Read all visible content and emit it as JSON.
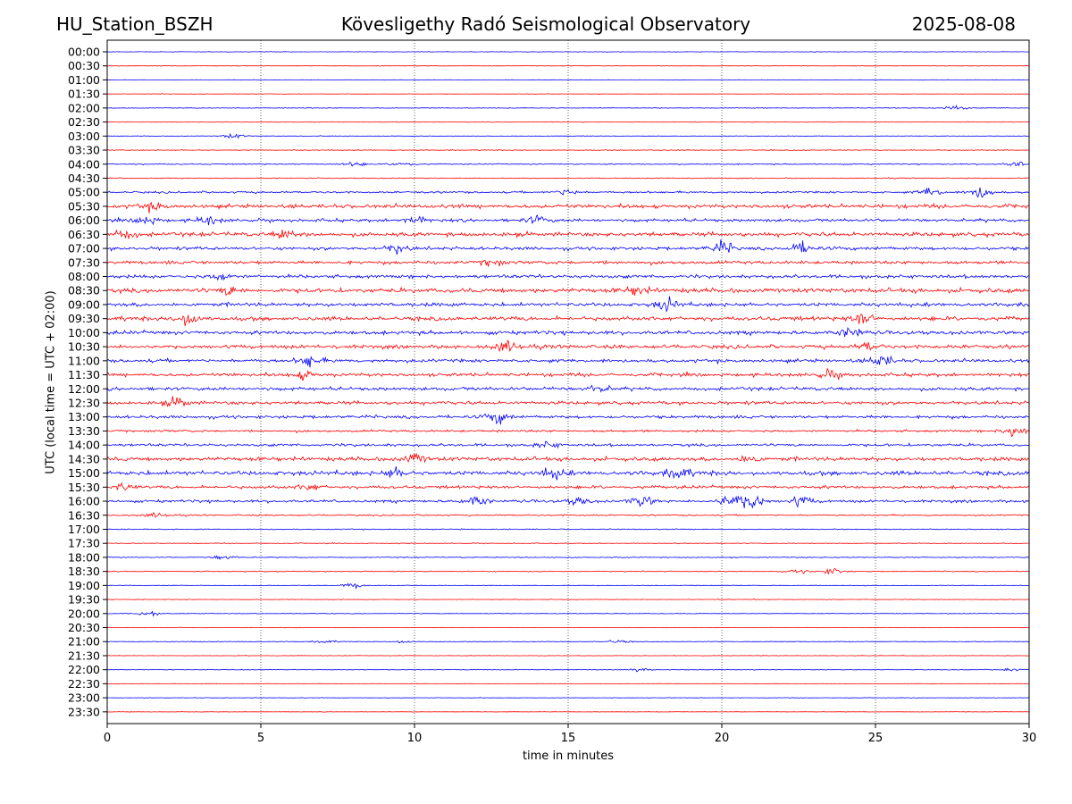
{
  "header": {
    "station": "HU_Station_BSZH",
    "observatory": "Kövesligethy Radó Seismological Observatory",
    "date": "2025-08-08"
  },
  "chart_data": {
    "type": "line",
    "title": "Kövesligethy Radó Seismological Observatory",
    "xlabel": "time in minutes",
    "ylabel": "UTC (local time = UTC + 02:00)",
    "xlim": [
      0,
      30
    ],
    "x_ticks": [
      "0",
      "5",
      "10",
      "15",
      "20",
      "25",
      "30"
    ],
    "grid": "vertical dotted at 5-minute intervals",
    "trace_colors": [
      "#0000ff",
      "#ff0000"
    ],
    "rows": [
      {
        "label": "00:00",
        "noise": 0.3
      },
      {
        "label": "00:30",
        "noise": 0.3
      },
      {
        "label": "01:00",
        "noise": 0.3
      },
      {
        "label": "01:30",
        "noise": 0.3
      },
      {
        "label": "02:00",
        "noise": 0.4
      },
      {
        "label": "02:30",
        "noise": 0.4
      },
      {
        "label": "03:00",
        "noise": 0.4
      },
      {
        "label": "03:30",
        "noise": 0.5
      },
      {
        "label": "04:00",
        "noise": 0.7
      },
      {
        "label": "04:30",
        "noise": 0.6
      },
      {
        "label": "05:00",
        "noise": 1.2
      },
      {
        "label": "05:30",
        "noise": 2.3
      },
      {
        "label": "06:00",
        "noise": 1.8
      },
      {
        "label": "06:30",
        "noise": 2.4
      },
      {
        "label": "07:00",
        "noise": 2.0
      },
      {
        "label": "07:30",
        "noise": 2.0
      },
      {
        "label": "08:00",
        "noise": 2.0
      },
      {
        "label": "08:30",
        "noise": 2.6
      },
      {
        "label": "09:00",
        "noise": 2.2
      },
      {
        "label": "09:30",
        "noise": 2.4
      },
      {
        "label": "10:00",
        "noise": 2.2
      },
      {
        "label": "10:30",
        "noise": 2.2
      },
      {
        "label": "11:00",
        "noise": 2.0
      },
      {
        "label": "11:30",
        "noise": 2.0
      },
      {
        "label": "12:00",
        "noise": 2.0
      },
      {
        "label": "12:30",
        "noise": 2.0
      },
      {
        "label": "13:00",
        "noise": 1.8
      },
      {
        "label": "13:30",
        "noise": 1.4
      },
      {
        "label": "14:00",
        "noise": 1.6
      },
      {
        "label": "14:30",
        "noise": 2.3
      },
      {
        "label": "15:00",
        "noise": 2.6
      },
      {
        "label": "15:30",
        "noise": 1.8
      },
      {
        "label": "16:00",
        "noise": 1.6
      },
      {
        "label": "16:30",
        "noise": 0.9
      },
      {
        "label": "17:00",
        "noise": 0.6
      },
      {
        "label": "17:30",
        "noise": 0.5
      },
      {
        "label": "18:00",
        "noise": 0.6
      },
      {
        "label": "18:30",
        "noise": 0.6
      },
      {
        "label": "19:00",
        "noise": 0.4
      },
      {
        "label": "19:30",
        "noise": 0.4
      },
      {
        "label": "20:00",
        "noise": 0.4
      },
      {
        "label": "20:30",
        "noise": 0.3
      },
      {
        "label": "21:00",
        "noise": 0.4
      },
      {
        "label": "21:30",
        "noise": 0.3
      },
      {
        "label": "22:00",
        "noise": 0.4
      },
      {
        "label": "22:30",
        "noise": 0.3
      },
      {
        "label": "23:00",
        "noise": 0.3
      },
      {
        "label": "23:30",
        "noise": 0.3
      }
    ],
    "bursts": [
      {
        "row": "02:00",
        "t": 27.6,
        "amp": 3
      },
      {
        "row": "03:00",
        "t": 4.1,
        "amp": 3
      },
      {
        "row": "04:00",
        "t": 8.0,
        "amp": 3
      },
      {
        "row": "04:00",
        "t": 9.6,
        "amp": 3
      },
      {
        "row": "04:00",
        "t": 29.6,
        "amp": 3
      },
      {
        "row": "05:00",
        "t": 15.0,
        "amp": 4
      },
      {
        "row": "05:00",
        "t": 26.8,
        "amp": 6
      },
      {
        "row": "05:00",
        "t": 28.4,
        "amp": 8
      },
      {
        "row": "05:30",
        "t": 1.5,
        "amp": 4
      },
      {
        "row": "06:00",
        "t": 1.3,
        "amp": 5
      },
      {
        "row": "06:00",
        "t": 3.3,
        "amp": 5
      },
      {
        "row": "06:00",
        "t": 10.0,
        "amp": 5
      },
      {
        "row": "06:00",
        "t": 14.0,
        "amp": 5
      },
      {
        "row": "06:30",
        "t": 0.6,
        "amp": 5
      },
      {
        "row": "06:30",
        "t": 5.8,
        "amp": 5
      },
      {
        "row": "07:00",
        "t": 9.4,
        "amp": 5
      },
      {
        "row": "07:00",
        "t": 20.0,
        "amp": 8
      },
      {
        "row": "07:00",
        "t": 22.6,
        "amp": 6
      },
      {
        "row": "07:30",
        "t": 12.5,
        "amp": 4
      },
      {
        "row": "08:00",
        "t": 3.7,
        "amp": 5
      },
      {
        "row": "08:30",
        "t": 4.0,
        "amp": 5
      },
      {
        "row": "08:30",
        "t": 17.2,
        "amp": 5
      },
      {
        "row": "09:00",
        "t": 18.2,
        "amp": 7
      },
      {
        "row": "09:30",
        "t": 2.6,
        "amp": 9
      },
      {
        "row": "09:30",
        "t": 24.6,
        "amp": 8
      },
      {
        "row": "10:00",
        "t": 24.2,
        "amp": 6
      },
      {
        "row": "10:30",
        "t": 13.0,
        "amp": 7
      },
      {
        "row": "10:30",
        "t": 24.8,
        "amp": 5
      },
      {
        "row": "11:00",
        "t": 6.6,
        "amp": 7
      },
      {
        "row": "11:00",
        "t": 25.2,
        "amp": 7
      },
      {
        "row": "11:30",
        "t": 6.4,
        "amp": 5
      },
      {
        "row": "11:30",
        "t": 23.5,
        "amp": 5
      },
      {
        "row": "12:00",
        "t": 16.0,
        "amp": 4
      },
      {
        "row": "12:30",
        "t": 2.3,
        "amp": 6
      },
      {
        "row": "13:00",
        "t": 12.7,
        "amp": 8
      },
      {
        "row": "13:30",
        "t": 29.5,
        "amp": 7
      },
      {
        "row": "14:00",
        "t": 14.3,
        "amp": 4
      },
      {
        "row": "14:30",
        "t": 10.0,
        "amp": 5
      },
      {
        "row": "14:30",
        "t": 20.9,
        "amp": 5
      },
      {
        "row": "15:00",
        "t": 9.4,
        "amp": 6
      },
      {
        "row": "15:00",
        "t": 14.5,
        "amp": 6
      },
      {
        "row": "15:00",
        "t": 18.6,
        "amp": 7
      },
      {
        "row": "15:30",
        "t": 0.5,
        "amp": 5
      },
      {
        "row": "15:30",
        "t": 6.6,
        "amp": 4
      },
      {
        "row": "16:00",
        "t": 12.0,
        "amp": 6
      },
      {
        "row": "16:00",
        "t": 15.3,
        "amp": 5
      },
      {
        "row": "16:00",
        "t": 17.4,
        "amp": 7
      },
      {
        "row": "16:00",
        "t": 20.3,
        "amp": 9
      },
      {
        "row": "16:00",
        "t": 21.0,
        "amp": 9
      },
      {
        "row": "16:00",
        "t": 22.6,
        "amp": 6
      },
      {
        "row": "16:30",
        "t": 1.6,
        "amp": 3
      },
      {
        "row": "18:00",
        "t": 3.8,
        "amp": 3
      },
      {
        "row": "18:30",
        "t": 23.6,
        "amp": 4
      },
      {
        "row": "18:30",
        "t": 22.5,
        "amp": 2
      },
      {
        "row": "19:00",
        "t": 8.0,
        "amp": 3
      },
      {
        "row": "20:00",
        "t": 1.3,
        "amp": 3
      },
      {
        "row": "21:00",
        "t": 7.1,
        "amp": 2
      },
      {
        "row": "21:00",
        "t": 9.6,
        "amp": 2
      },
      {
        "row": "21:00",
        "t": 16.6,
        "amp": 2
      },
      {
        "row": "22:00",
        "t": 17.3,
        "amp": 2
      },
      {
        "row": "22:00",
        "t": 29.3,
        "amp": 2
      }
    ]
  }
}
